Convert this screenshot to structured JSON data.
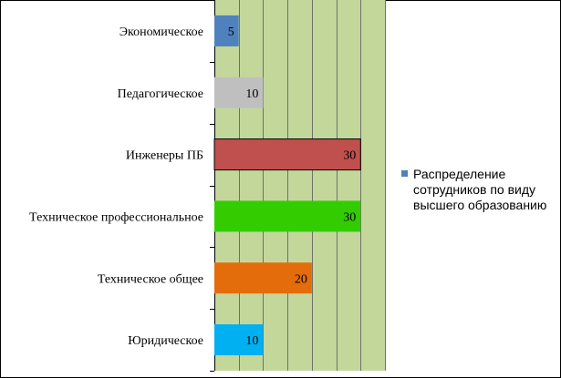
{
  "chart_data": {
    "type": "bar",
    "orientation": "horizontal",
    "title": "",
    "xlabel": "",
    "ylabel": "",
    "categories": [
      "Юридическое",
      "Техническое общее",
      "Техническое профессиональное",
      "Инженеры ПБ",
      "Педагогическое",
      "Экономическое"
    ],
    "series": [
      {
        "name": "Распределение сотрудников по виду высшего образованию",
        "values": [
          10,
          20,
          30,
          30,
          10,
          5
        ],
        "colors": [
          "#00b0f0",
          "#e46c0a",
          "#33cc00",
          "#c0504d",
          "#bfbfbf",
          "#4f81bd"
        ]
      }
    ],
    "data_labels": [
      "10",
      "20",
      "30",
      "30",
      "10",
      "5"
    ],
    "xlim": [
      0,
      35
    ],
    "grid": true,
    "plot_background": "#c4d79b",
    "gridline_color": "#6f6f6f",
    "legend": {
      "position": "right",
      "label": "Распределение сотрудников по виду высшего образованию",
      "color": "#4f81bd"
    }
  }
}
